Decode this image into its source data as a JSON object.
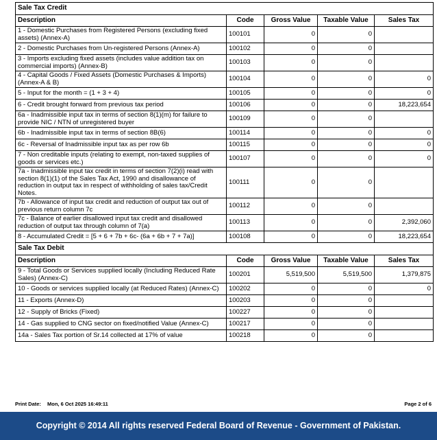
{
  "sections": [
    {
      "title": "Sale Tax Credit",
      "headers": [
        "Description",
        "Code",
        "Gross Value",
        "Taxable Value",
        "Sales Tax"
      ],
      "rows": [
        [
          "1 - Domestic Purchases from Registered Persons (excluding fixed assets) (Annex-A)",
          "100101",
          "0",
          "0"
        ],
        [
          "2 - Domestic Purchases from Un-registered Persons (Annex-A)",
          "100102",
          "0",
          "0"
        ],
        [
          "3 - Imports excluding fixed assets (includes value addition tax on commercial imports) (Annex-B)",
          "100103",
          "0",
          "0"
        ],
        [
          "4 - Capital Goods / Fixed Assets (Domestic Purchases & Imports) (Annex-A & B)",
          "100104",
          "0",
          "0",
          "0"
        ],
        [
          "5 - Input for the month = (1 + 3 + 4)",
          "100105",
          "0",
          "0",
          "0"
        ],
        [
          "6 - Credit brought forward from previous tax period",
          "100106",
          "0",
          "0",
          "18,223,654"
        ],
        [
          "6a - Inadmissible input tax in terms of section 8(1)(m) for failure to provide NIC / NTN of unregistered buyer",
          "100109",
          "0",
          "0"
        ],
        [
          "6b - Inadmissible input tax in terms of section 8B(6)",
          "100114",
          "0",
          "0",
          "0"
        ],
        [
          "6c - Reversal of Inadmissible input tax as per row 6b",
          "100115",
          "0",
          "0",
          "0"
        ],
        [
          "7 - Non creditable inputs (relating to exempt, non-taxed supplies of goods or services etc.)",
          "100107",
          "0",
          "0",
          "0"
        ],
        [
          "7a - Inadmissible input tax credit in terms of section 7(2)(i) read with section 8(1)(1) of the Sales Tax Act, 1990 and disallowance of reduction in output tax in respect of withholding of sales tax/Credit Notes.",
          "100111",
          "0",
          "0"
        ],
        [
          "7b - Allowance of input tax credit and reduction of output tax out of previous return column 7c",
          "100112",
          "0",
          "0"
        ],
        [
          "7c - Balance of earlier disallowed input tax credit and disallowed reduction of output tax through column of 7(a)",
          "100113",
          "0",
          "0",
          "2,392,060"
        ],
        [
          "8 - Accumulated Credit = [5 + 6 + 7b + 6c- (6a + 6b + 7 + 7a)]",
          "100108",
          "0",
          "0",
          "18,223,654"
        ]
      ]
    },
    {
      "title": "Sale Tax Debit",
      "headers": [
        "Description",
        "Code",
        "Gross Value",
        "Taxable Value",
        "Sales Tax"
      ],
      "rows": [
        [
          "9 - Total Goods or Services supplied locally (Including Reduced Rate Sales) (Annex-C)",
          "100201",
          "5,519,500",
          "5,519,500",
          "1,379,875"
        ],
        [
          "10 - Goods or services supplied locally (at Reduced Rates) (Annex-C)",
          "100202",
          "0",
          "0",
          "0"
        ],
        [
          "11 - Exports (Annex-D)",
          "100203",
          "0",
          "0"
        ],
        [
          "12 - Supply of Bricks (Fixed)",
          "100227",
          "0",
          "0"
        ],
        [
          "14 - Gas supplied to CNG sector on fixed/notified Value (Annex-C)",
          "100217",
          "0",
          "0"
        ],
        [
          "14a - Sales Tax portion of Sr.14 collected at 17% of value",
          "100218",
          "0",
          "0"
        ]
      ]
    }
  ],
  "footer": {
    "print_label": "Print Date:",
    "print_date": "Mon, 6 Oct 2025 16:49:11",
    "page": "Page 2 of  6"
  },
  "banner": "Copyright © 2014 All rights reserved  Federal Board of Revenue - Government of Pakistan."
}
